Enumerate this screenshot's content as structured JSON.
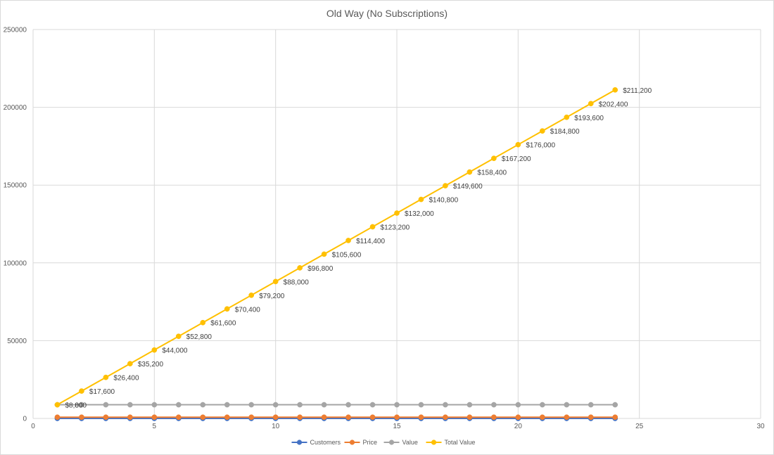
{
  "chart_data": {
    "type": "line",
    "title": "Old Way (No Subscriptions)",
    "xlabel": "",
    "ylabel": "",
    "xlim": [
      0,
      30
    ],
    "ylim": [
      0,
      250000
    ],
    "x_ticks": [
      "0",
      "5",
      "10",
      "15",
      "20",
      "25",
      "30"
    ],
    "y_ticks": [
      "0",
      "50000",
      "100000",
      "150000",
      "200000",
      "250000"
    ],
    "grid": true,
    "legend_position": "bottom",
    "x": [
      1,
      2,
      3,
      4,
      5,
      6,
      7,
      8,
      9,
      10,
      11,
      12,
      13,
      14,
      15,
      16,
      17,
      18,
      19,
      20,
      21,
      22,
      23,
      24
    ],
    "series": [
      {
        "name": "Customers",
        "color": "#4472C4",
        "values": [
          1,
          1,
          1,
          1,
          1,
          1,
          1,
          1,
          1,
          1,
          1,
          1,
          1,
          1,
          1,
          1,
          1,
          1,
          1,
          1,
          1,
          1,
          1,
          1
        ]
      },
      {
        "name": "Price",
        "color": "#ED7D31",
        "values": [
          800,
          800,
          800,
          800,
          800,
          800,
          800,
          800,
          800,
          800,
          800,
          800,
          800,
          800,
          800,
          800,
          800,
          800,
          800,
          800,
          800,
          800,
          800,
          800
        ]
      },
      {
        "name": "Value",
        "color": "#A5A5A5",
        "values": [
          8800,
          8800,
          8800,
          8800,
          8800,
          8800,
          8800,
          8800,
          8800,
          8800,
          8800,
          8800,
          8800,
          8800,
          8800,
          8800,
          8800,
          8800,
          8800,
          8800,
          8800,
          8800,
          8800,
          8800
        ]
      },
      {
        "name": "Total Value",
        "color": "#FFC000",
        "values": [
          8800,
          17600,
          26400,
          35200,
          44000,
          52800,
          61600,
          70400,
          79200,
          88000,
          96800,
          105600,
          114400,
          123200,
          132000,
          140800,
          149600,
          158400,
          167200,
          176000,
          184800,
          193600,
          202400,
          211200
        ],
        "labels": [
          "$8,800",
          "$17,600",
          "$26,400",
          "$35,200",
          "$44,000",
          "$52,800",
          "$61,600",
          "$70,400",
          "$79,200",
          "$88,000",
          "$96,800",
          "$105,600",
          "$114,400",
          "$123,200",
          "$132,000",
          "$140,800",
          "$149,600",
          "$158,400",
          "$167,200",
          "$176,000",
          "$184,800",
          "$193,600",
          "$202,400",
          "$211,200"
        ]
      }
    ],
    "overlap_label": {
      "text": "00",
      "series": "Value",
      "index": 0
    }
  }
}
